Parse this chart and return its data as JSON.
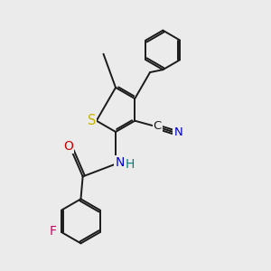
{
  "bg_color": "#ebebeb",
  "bond_color": "#1a1a1a",
  "bond_lw": 1.4,
  "dbo": 0.05,
  "atom_colors": {
    "S": "#c8b400",
    "N": "#0000cc",
    "O": "#cc0000",
    "F": "#cc0066",
    "C": "#1a1a1a",
    "H": "#008080"
  }
}
